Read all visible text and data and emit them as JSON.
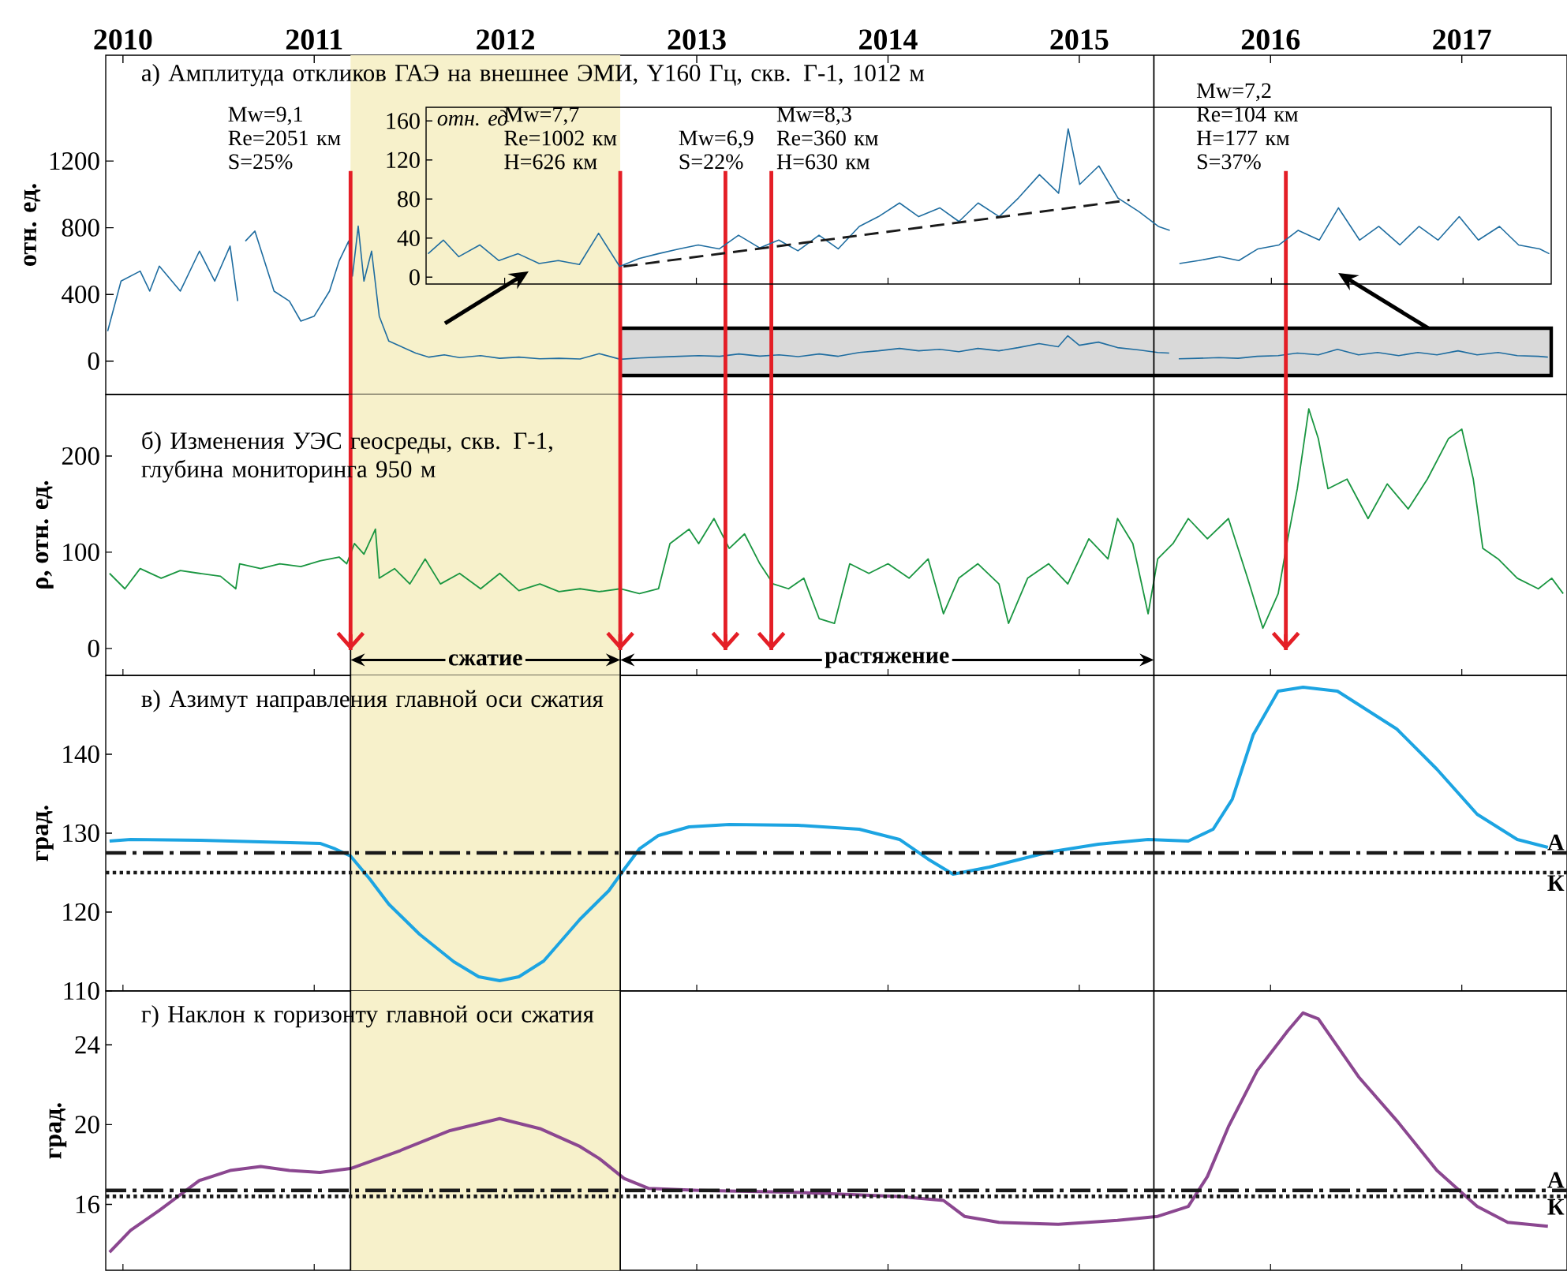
{
  "chart_data": [
    {
      "type": "line",
      "title": "а) Амплитуда откликов ГАЭ на внешнее ЭМИ, Y160 Гц, скв. Г-1, 1012 м",
      "ylabel": "отн. ед.",
      "xlim": [
        2009.91,
        2017.55
      ],
      "ylim": [
        -200,
        1835
      ],
      "xticks": [
        2010,
        2011,
        2012,
        2013,
        2014,
        2015,
        2016,
        2017
      ],
      "yticks": [
        0,
        400,
        800,
        1200
      ],
      "series": [
        {
          "color": "#1f6da0",
          "x": [
            2009.92,
            2009.99,
            2010.09,
            2010.14,
            2010.19,
            2010.3,
            2010.4,
            2010.48,
            2010.56,
            2010.6,
            2010.62,
            2010.64,
            2010.69,
            2010.74,
            2010.79,
            2010.87,
            2010.93,
            2011.0,
            2011.08,
            2011.13,
            2011.18,
            2011.2,
            2011.23,
            2011.26,
            2011.3,
            2011.34,
            2011.39,
            2011.45,
            2011.53,
            2011.6,
            2011.68,
            2011.76,
            2011.87,
            2011.97,
            2012.07,
            2012.18,
            2012.28,
            2012.39,
            2012.49,
            2012.6,
            2012.7,
            2012.8,
            2012.91,
            2013.01,
            2013.12,
            2013.22,
            2013.33,
            2013.43,
            2013.53,
            2013.64,
            2013.74,
            2013.85,
            2013.95,
            2014.06,
            2014.16,
            2014.27,
            2014.37,
            2014.47,
            2014.58,
            2014.68,
            2014.79,
            2014.89,
            2014.94,
            2015.0,
            2015.1,
            2015.2,
            2015.31,
            2015.41,
            2015.47,
            2015.5,
            2015.52,
            2015.62,
            2015.73,
            2015.83,
            2015.93,
            2016.04,
            2016.14,
            2016.25,
            2016.35,
            2016.46,
            2016.56,
            2016.67,
            2016.77,
            2016.87,
            2016.98,
            2017.08,
            2017.19,
            2017.29,
            2017.4,
            2017.45
          ],
          "values": [
            180,
            480,
            540,
            420,
            570,
            420,
            660,
            480,
            690,
            360,
            null,
            720,
            780,
            600,
            420,
            360,
            240,
            270,
            420,
            600,
            720,
            510,
            810,
            480,
            660,
            270,
            120,
            90,
            48,
            24,
            38,
            21,
            33,
            17,
            24,
            14,
            17,
            13,
            45,
            11,
            19,
            24,
            29,
            33,
            29,
            43,
            30,
            38,
            27,
            43,
            29,
            52,
            62,
            76,
            62,
            71,
            57,
            76,
            62,
            81,
            105,
            86,
            152,
            95,
            114,
            81,
            67,
            52,
            48,
            null,
            14,
            17,
            21,
            17,
            29,
            33,
            48,
            38,
            71,
            38,
            52,
            33,
            52,
            38,
            62,
            38,
            52,
            33,
            29,
            24
          ]
        }
      ],
      "bands": [
        {
          "axis": "x",
          "from": 2011.19,
          "to": 2012.6,
          "color": "#f7f1cb"
        }
      ],
      "ref_lines": [
        {
          "axis": "x",
          "value": 2011.19,
          "color": "#e41e26"
        },
        {
          "axis": "x",
          "value": 2012.6,
          "color": "#e41e26"
        },
        {
          "axis": "x",
          "value": 2013.15,
          "color": "#e41e26"
        },
        {
          "axis": "x",
          "value": 2013.39,
          "color": "#e41e26"
        },
        {
          "axis": "x",
          "value": 2016.08,
          "color": "#e41e26"
        },
        {
          "axis": "x",
          "value": 2015.39,
          "color": "#000000"
        }
      ],
      "annotations": [
        {
          "text": "Mw=9,1 Re=2051 км S=25%",
          "x": 2011.19,
          "y": 1140
        },
        {
          "text": "Mw=7,7 Re=1002 км H=626 км",
          "x": 2012.6,
          "y": 1140
        },
        {
          "text": "Mw=6,9 S=22%",
          "x": 2013.15,
          "y": 1140
        },
        {
          "text": "Mw=8,3 Re=360 км H=630 км",
          "x": 2013.39,
          "y": 1140
        },
        {
          "text": "Mw=7,2 Re=104 км H=177 км S=37%",
          "x": 2016.08,
          "y": 1140
        }
      ]
    },
    {
      "type": "line",
      "ylabel": "отн. ед",
      "xlim": [
        2011.59,
        2017.46
      ],
      "xticks": [
        2012,
        2013,
        2014,
        2015,
        2016,
        2017
      ],
      "ylim": [
        -7,
        174
      ],
      "yticks": [
        0,
        40,
        80,
        120,
        160
      ],
      "tick_labels": "y",
      "series": [
        {
          "color": "#1f6da0",
          "x": [
            2011.6,
            2011.68,
            2011.76,
            2011.87,
            2011.97,
            2012.07,
            2012.18,
            2012.28,
            2012.39,
            2012.49,
            2012.6,
            2012.7,
            2012.8,
            2012.91,
            2013.01,
            2013.12,
            2013.22,
            2013.33,
            2013.43,
            2013.53,
            2013.64,
            2013.74,
            2013.85,
            2013.95,
            2014.06,
            2014.16,
            2014.27,
            2014.37,
            2014.47,
            2014.58,
            2014.68,
            2014.79,
            2014.89,
            2014.94,
            2015.0,
            2015.1,
            2015.2,
            2015.31,
            2015.41,
            2015.47,
            2015.5,
            2015.52,
            2015.62,
            2015.73,
            2015.83,
            2015.93,
            2016.04,
            2016.14,
            2016.25,
            2016.35,
            2016.46,
            2016.56,
            2016.67,
            2016.77,
            2016.87,
            2016.98,
            2017.08,
            2017.19,
            2017.29,
            2017.4,
            2017.45
          ],
          "values": [
            24,
            38,
            21,
            33,
            17,
            24,
            14,
            17,
            13,
            45,
            11,
            19,
            24,
            29,
            33,
            29,
            43,
            30,
            38,
            27,
            43,
            29,
            52,
            62,
            76,
            62,
            71,
            57,
            76,
            62,
            81,
            105,
            86,
            152,
            95,
            114,
            81,
            67,
            52,
            48,
            null,
            14,
            17,
            21,
            17,
            29,
            33,
            48,
            38,
            71,
            38,
            52,
            33,
            52,
            38,
            62,
            38,
            52,
            33,
            29,
            24
          ]
        },
        {
          "type": "line",
          "color": "#1a1a1a",
          "line_style": "dashed",
          "x": [
            2012.62,
            2015.26
          ],
          "values": [
            11,
            79
          ]
        }
      ]
    },
    {
      "type": "line",
      "title": "б) Изменения УЭС геосреды, скв. Г-1, глубина мониторинга 950 м",
      "ylabel": "ρ, отн. ед.",
      "xlim": [
        2009.91,
        2017.55
      ],
      "ylim": [
        -28,
        264
      ],
      "xticks": [
        2010,
        2011,
        2012,
        2013,
        2014,
        2015,
        2016,
        2017
      ],
      "yticks": [
        0,
        100,
        200
      ],
      "tick_labels": "y",
      "series": [
        {
          "color": "#1a9641",
          "x": [
            2009.93,
            2010.01,
            2010.09,
            2010.2,
            2010.3,
            2010.4,
            2010.51,
            2010.59,
            2010.61,
            2010.72,
            2010.82,
            2010.93,
            2011.03,
            2011.13,
            2011.17,
            2011.21,
            2011.26,
            2011.32,
            2011.34,
            2011.42,
            2011.5,
            2011.58,
            2011.66,
            2011.76,
            2011.87,
            2011.97,
            2012.07,
            2012.18,
            2012.28,
            2012.39,
            2012.49,
            2012.6,
            2012.7,
            2012.8,
            2012.86,
            2012.96,
            2013.01,
            2013.09,
            2013.17,
            2013.25,
            2013.33,
            2013.4,
            2013.48,
            2013.56,
            2013.64,
            2013.72,
            2013.8,
            2013.9,
            2014.0,
            2014.11,
            2014.21,
            2014.29,
            2014.37,
            2014.47,
            2014.58,
            2014.63,
            2014.73,
            2014.84,
            2014.94,
            2015.05,
            2015.15,
            2015.2,
            2015.28,
            2015.36,
            2015.41,
            2015.49,
            2015.57,
            2015.67,
            2015.78,
            2015.88,
            2015.96,
            2016.04,
            2016.09,
            2016.14,
            2016.2,
            2016.25,
            2016.3,
            2016.4,
            2016.51,
            2016.61,
            2016.72,
            2016.82,
            2016.93,
            2017.0,
            2017.06,
            2017.11,
            2017.19,
            2017.29,
            2017.4,
            2017.47,
            2017.53
          ],
          "values": [
            78,
            62,
            83,
            73,
            81,
            78,
            75,
            62,
            88,
            83,
            88,
            85,
            91,
            95,
            88,
            109,
            98,
            124,
            73,
            83,
            67,
            93,
            67,
            78,
            62,
            78,
            60,
            67,
            59,
            62,
            59,
            62,
            57,
            62,
            109,
            124,
            109,
            135,
            104,
            119,
            88,
            67,
            62,
            73,
            31,
            26,
            88,
            78,
            88,
            73,
            93,
            36,
            73,
            88,
            67,
            26,
            73,
            88,
            67,
            114,
            93,
            135,
            109,
            36,
            93,
            109,
            135,
            114,
            135,
            73,
            21,
            57,
            114,
            166,
            249,
            218,
            166,
            176,
            135,
            171,
            145,
            176,
            218,
            228,
            176,
            104,
            93,
            73,
            62,
            73,
            57
          ]
        }
      ],
      "bands": [
        {
          "axis": "x",
          "from": 2011.19,
          "to": 2012.6,
          "color": "#f7f1cb"
        }
      ],
      "annotations": [
        "сжатие",
        "растяжение"
      ],
      "ref_lines": [
        {
          "axis": "x",
          "value": 2011.19,
          "color": "#000000"
        },
        {
          "axis": "x",
          "value": 2012.6,
          "color": "#000000"
        },
        {
          "axis": "x",
          "value": 2015.39,
          "color": "#000000"
        },
        {
          "axis": "x",
          "value": 2011.19,
          "color": "#e41e26"
        },
        {
          "axis": "x",
          "value": 2012.6,
          "color": "#e41e26"
        },
        {
          "axis": "x",
          "value": 2013.15,
          "color": "#e41e26"
        },
        {
          "axis": "x",
          "value": 2013.39,
          "color": "#e41e26"
        },
        {
          "axis": "x",
          "value": 2016.08,
          "color": "#e41e26"
        }
      ]
    },
    {
      "type": "line",
      "title": "в) Азимут направления главной оси сжатия",
      "ylabel": "град.",
      "xlim": [
        2009.91,
        2017.55
      ],
      "ylim": [
        110,
        150
      ],
      "xticks": [
        2010,
        2011,
        2012,
        2013,
        2014,
        2015,
        2016,
        2017
      ],
      "yticks": [
        110,
        120,
        130,
        140
      ],
      "tick_labels": "y",
      "series": [
        {
          "color": "#1ca4e2",
          "x": [
            2009.93,
            2010.04,
            2010.4,
            2011.03,
            2011.11,
            2011.19,
            2011.29,
            2011.39,
            2011.55,
            2011.73,
            2011.86,
            2011.97,
            2012.07,
            2012.2,
            2012.39,
            2012.54,
            2012.62,
            2012.7,
            2012.8,
            2012.96,
            2013.17,
            2013.53,
            2013.85,
            2014.06,
            2014.21,
            2014.34,
            2014.53,
            2014.84,
            2015.1,
            2015.36,
            2015.57,
            2015.7,
            2015.8,
            2015.91,
            2016.04,
            2016.17,
            2016.35,
            2016.66,
            2016.87,
            2017.08,
            2017.29,
            2017.45
          ],
          "values": [
            129.0,
            129.2,
            129.1,
            128.7,
            128.0,
            127.1,
            124.2,
            121.0,
            117.2,
            113.7,
            111.8,
            111.3,
            111.8,
            113.8,
            119.1,
            122.7,
            125.4,
            128.0,
            129.7,
            130.8,
            131.1,
            131.0,
            130.5,
            129.2,
            126.7,
            124.8,
            125.7,
            127.6,
            128.6,
            129.2,
            129.0,
            130.5,
            134.3,
            142.5,
            148.0,
            148.5,
            148.0,
            143.2,
            138.1,
            132.4,
            129.2,
            128.2
          ]
        }
      ],
      "bands": [
        {
          "axis": "x",
          "from": 2011.19,
          "to": 2012.6,
          "color": "#f7f1cb"
        }
      ],
      "ref_lines": [
        {
          "axis": "x",
          "value": 2011.19,
          "color": "#000000"
        },
        {
          "axis": "x",
          "value": 2012.6,
          "color": "#000000"
        },
        {
          "axis": "x",
          "value": 2015.39,
          "color": "#000000"
        },
        {
          "axis": "y",
          "value": 127.5,
          "color": "#1a1a1a",
          "line_style": "dashdot",
          "label": "А"
        },
        {
          "axis": "y",
          "value": 125,
          "color": "#1a1a1a",
          "line_style": "dotted",
          "label": "К"
        }
      ]
    },
    {
      "type": "line",
      "title": "г) Наклон к горизонту главной оси сжатия",
      "ylabel": "град.",
      "xlim": [
        2009.91,
        2017.55
      ],
      "ylim": [
        12.7,
        26.7
      ],
      "xticks": [
        2010,
        2011,
        2012,
        2013,
        2014,
        2015,
        2016,
        2017
      ],
      "yticks": [
        16,
        20,
        24
      ],
      "tick_labels": "y",
      "series": [
        {
          "color": "#8b4790",
          "x": [
            2009.93,
            2010.04,
            2010.19,
            2010.4,
            2010.56,
            2010.72,
            2010.87,
            2011.03,
            2011.19,
            2011.45,
            2011.71,
            2011.97,
            2012.18,
            2012.39,
            2012.49,
            2012.62,
            2012.75,
            2013.01,
            2013.53,
            2014.06,
            2014.29,
            2014.4,
            2014.58,
            2014.89,
            2015.2,
            2015.41,
            2015.57,
            2015.67,
            2015.78,
            2015.93,
            2016.09,
            2016.17,
            2016.25,
            2016.46,
            2016.66,
            2016.87,
            2017.08,
            2017.24,
            2017.45
          ],
          "values": [
            13.6,
            14.7,
            15.7,
            17.2,
            17.7,
            17.9,
            17.7,
            17.6,
            17.8,
            18.7,
            19.7,
            20.3,
            19.8,
            18.9,
            18.3,
            17.3,
            16.8,
            16.7,
            16.6,
            16.4,
            16.2,
            15.4,
            15.1,
            15.0,
            15.2,
            15.4,
            15.9,
            17.4,
            19.9,
            22.7,
            24.7,
            25.6,
            25.3,
            22.4,
            20.2,
            17.7,
            15.9,
            15.1,
            14.9
          ]
        }
      ],
      "bands": [
        {
          "axis": "x",
          "from": 2011.19,
          "to": 2012.6,
          "color": "#f7f1cb"
        }
      ],
      "ref_lines": [
        {
          "axis": "x",
          "value": 2011.19,
          "color": "#000000"
        },
        {
          "axis": "x",
          "value": 2012.6,
          "color": "#000000"
        },
        {
          "axis": "x",
          "value": 2015.39,
          "color": "#000000"
        },
        {
          "axis": "y",
          "value": 16.7,
          "color": "#1a1a1a",
          "line_style": "dashdot",
          "label": "А"
        },
        {
          "axis": "y",
          "value": 16.4,
          "color": "#1a1a1a",
          "line_style": "dotted",
          "label": "К"
        }
      ]
    }
  ]
}
